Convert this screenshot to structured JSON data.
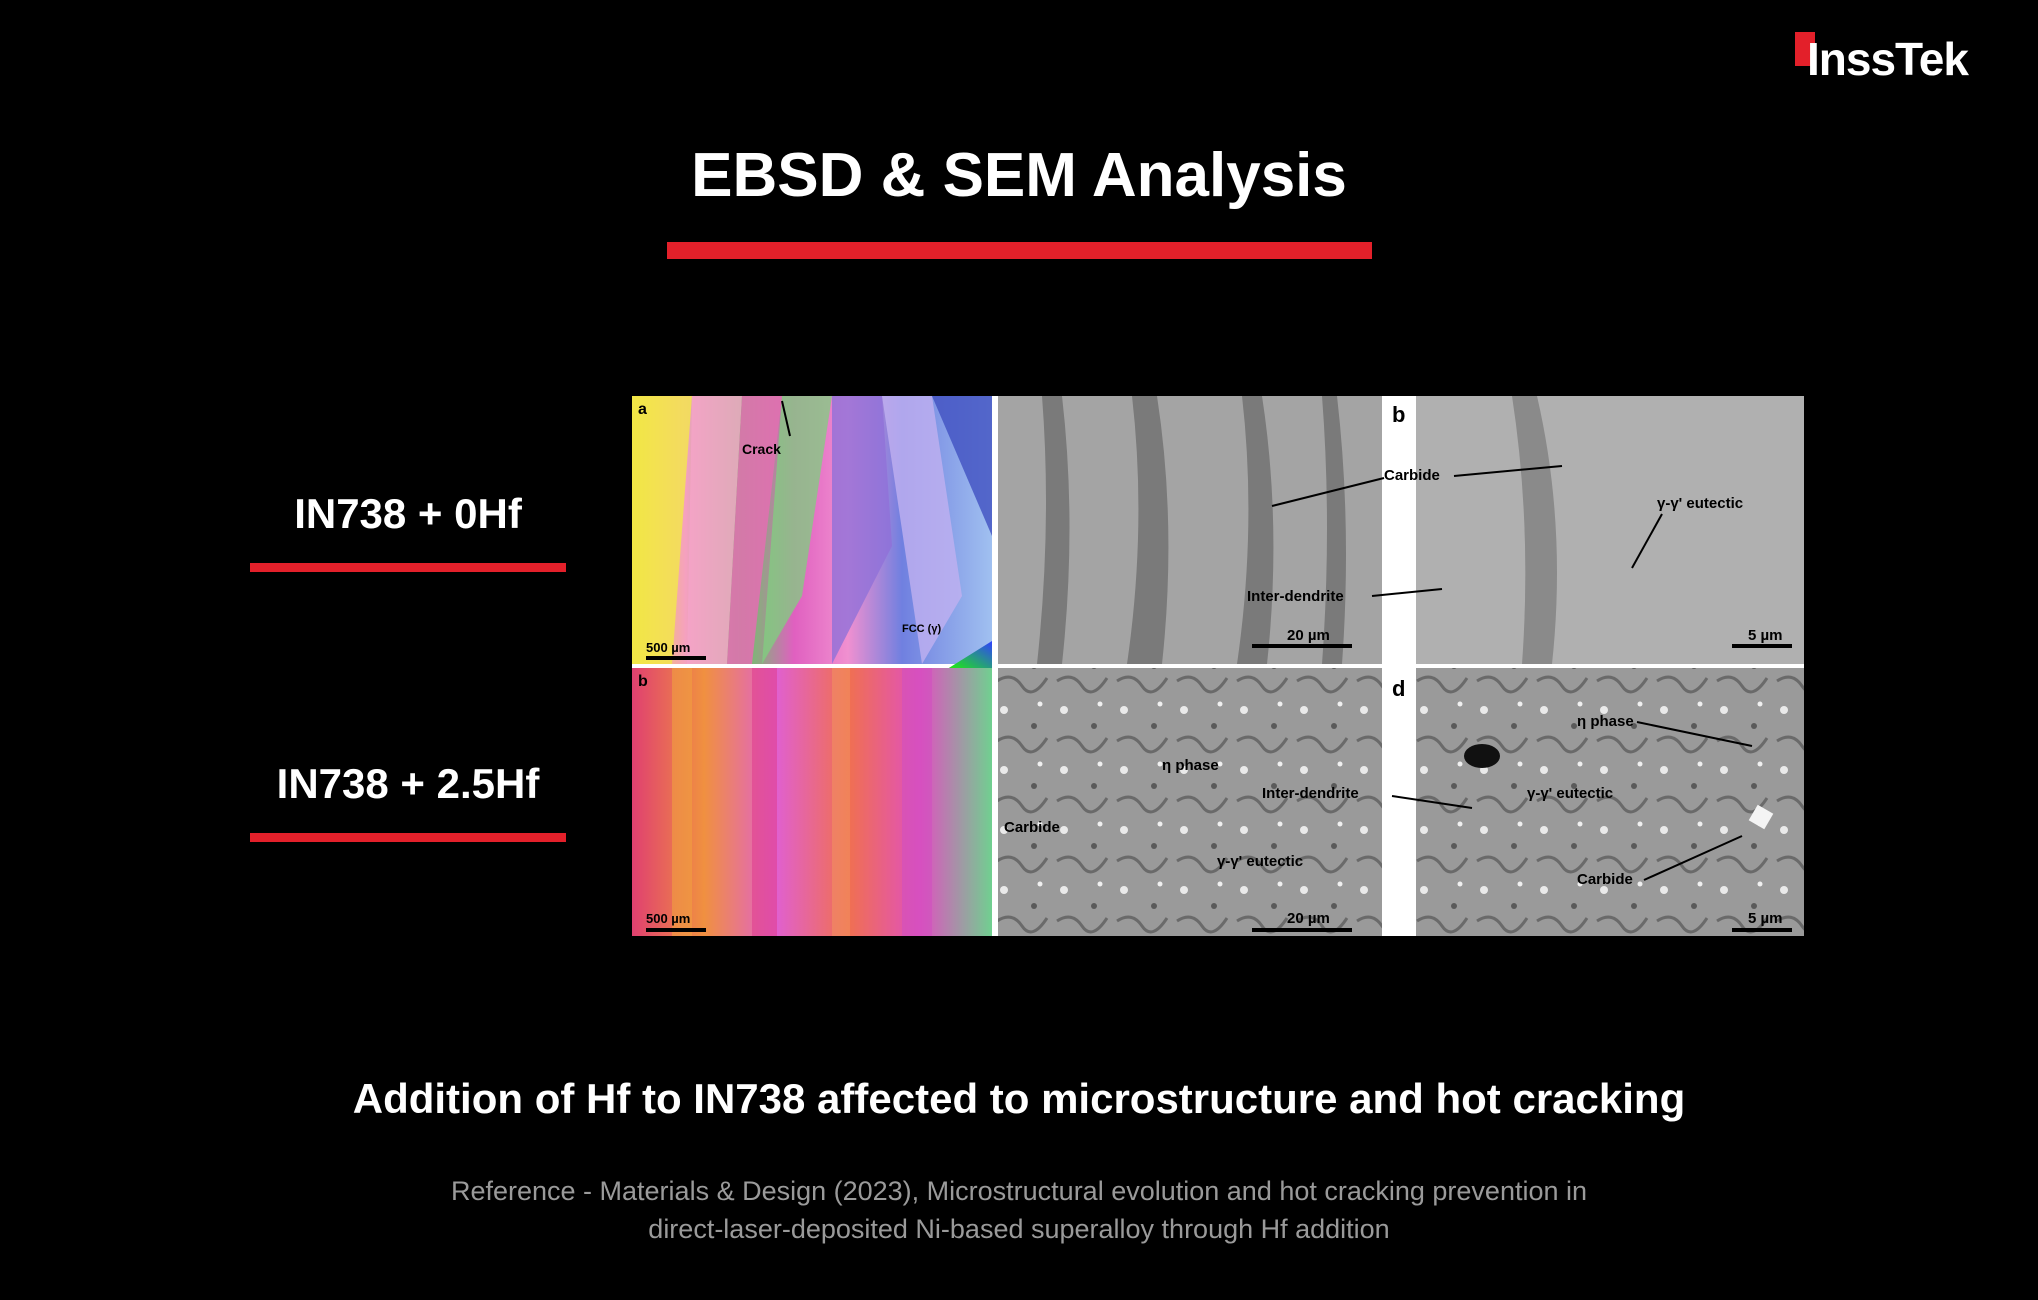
{
  "brand": {
    "logo_text": "InssTek",
    "accent_color": "#e3202a"
  },
  "title": "EBSD & SEM Analysis",
  "rows": [
    {
      "label": "IN738 + 0Hf"
    },
    {
      "label": "IN738 + 2.5Hf"
    }
  ],
  "figure": {
    "panel_a": {
      "letter": "a",
      "crack_label": "Crack",
      "scale": "500 µm",
      "legend": "FCC (γ)"
    },
    "panel_b_ebsd": {
      "letter": "b",
      "scale": "500 µm"
    },
    "sem_top": {
      "letter": "b",
      "labels": {
        "carbide": "Carbide",
        "eutectic": "γ-γ' eutectic",
        "interdendrite": "Inter-dendrite"
      },
      "scale_left": "20 µm",
      "scale_right": "5 µm"
    },
    "sem_bottom": {
      "letter": "d",
      "labels": {
        "eta": "η phase",
        "eta_right": "η phase",
        "interdendrite": "Inter-dendrite",
        "carbide": "Carbide",
        "eutectic": "γ-γ' eutectic",
        "eutectic_right": "γ-γ' eutectic",
        "carbide_right": "Carbide"
      },
      "scale_left": "20 µm",
      "scale_right": "5 µm"
    }
  },
  "caption": "Addition of Hf to IN738 affected to microstructure and hot cracking",
  "reference": {
    "line1": "Reference - Materials & Design (2023), Microstructural evolution and hot cracking prevention in",
    "line2": "direct-laser-deposited Ni-based superalloy through Hf addition"
  }
}
